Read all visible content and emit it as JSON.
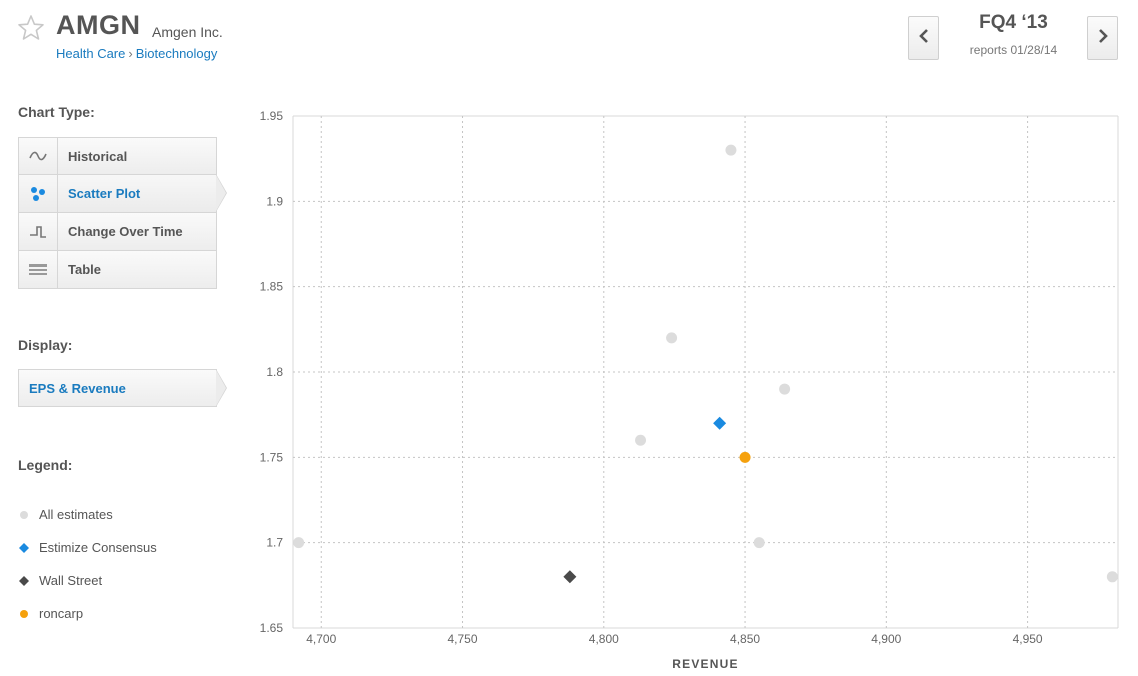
{
  "header": {
    "ticker": "AMGN",
    "company": "Amgen Inc.",
    "sector": "Health Care",
    "industry": "Biotechnology",
    "quarter": "FQ4 ‘13",
    "reports": "reports 01/28/14",
    "icons": {
      "favorite": "star-icon",
      "prev": "chevron-left-icon",
      "next": "chevron-right-icon"
    }
  },
  "sidebar": {
    "chart_type_label": "Chart Type:",
    "chart_types": [
      {
        "label": "Historical",
        "icon": "wave-icon",
        "active": false
      },
      {
        "label": "Scatter Plot",
        "icon": "scatter-dots-icon",
        "active": true
      },
      {
        "label": "Change Over Time",
        "icon": "step-line-icon",
        "active": false
      },
      {
        "label": "Table",
        "icon": "table-icon",
        "active": false
      }
    ],
    "display_label": "Display:",
    "display_value": "EPS & Revenue",
    "legend_label": "Legend:",
    "legend": [
      {
        "label": "All estimates",
        "shape": "circle",
        "color": "#dcdcdc"
      },
      {
        "label": "Estimize Consensus",
        "shape": "diamond",
        "color": "#1a8ae0"
      },
      {
        "label": "Wall Street",
        "shape": "diamond",
        "color": "#4a4a4a"
      },
      {
        "label": "roncarp",
        "shape": "circle",
        "color": "#f5a10d"
      }
    ]
  },
  "chart_data": {
    "type": "scatter",
    "xlabel": "REVENUE",
    "ylabel": "",
    "xlim": [
      4690,
      4982
    ],
    "ylim": [
      1.65,
      1.95
    ],
    "xticks": [
      {
        "value": 4700,
        "label": "4,700"
      },
      {
        "value": 4750,
        "label": "4,750"
      },
      {
        "value": 4800,
        "label": "4,800"
      },
      {
        "value": 4850,
        "label": "4,850"
      },
      {
        "value": 4900,
        "label": "4,900"
      },
      {
        "value": 4950,
        "label": "4,950"
      }
    ],
    "yticks": [
      {
        "value": 1.65,
        "label": "1.65"
      },
      {
        "value": 1.7,
        "label": "1.7"
      },
      {
        "value": 1.75,
        "label": "1.75"
      },
      {
        "value": 1.8,
        "label": "1.8"
      },
      {
        "value": 1.85,
        "label": "1.85"
      },
      {
        "value": 1.9,
        "label": "1.9"
      },
      {
        "value": 1.95,
        "label": "1.95"
      }
    ],
    "grid": true,
    "series": [
      {
        "name": "All estimates",
        "shape": "circle",
        "color": "#dcdcdc",
        "points": [
          {
            "x": 4845,
            "y": 1.93
          },
          {
            "x": 4824,
            "y": 1.82
          },
          {
            "x": 4864,
            "y": 1.79
          },
          {
            "x": 4813,
            "y": 1.76
          },
          {
            "x": 4692,
            "y": 1.7
          },
          {
            "x": 4855,
            "y": 1.7
          },
          {
            "x": 4980,
            "y": 1.68
          }
        ]
      },
      {
        "name": "Estimize Consensus",
        "shape": "diamond",
        "color": "#1a8ae0",
        "points": [
          {
            "x": 4841,
            "y": 1.77
          }
        ]
      },
      {
        "name": "Wall Street",
        "shape": "diamond",
        "color": "#4a4a4a",
        "points": [
          {
            "x": 4788,
            "y": 1.68
          }
        ]
      },
      {
        "name": "roncarp",
        "shape": "circle",
        "color": "#f5a10d",
        "points": [
          {
            "x": 4850,
            "y": 1.75
          }
        ]
      }
    ]
  }
}
